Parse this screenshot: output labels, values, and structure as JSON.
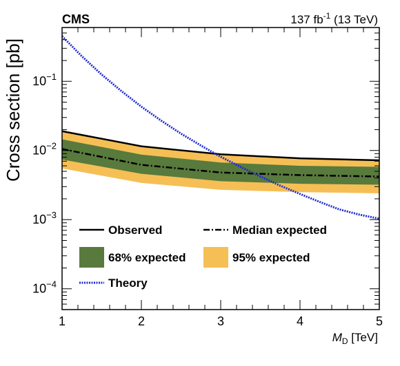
{
  "chart_data": {
    "type": "line",
    "title": "",
    "experiment_label": "CMS",
    "lumi_value": "137 fb",
    "lumi_exponent": "-1",
    "lumi_energy": " (13 TeV)",
    "xlabel_symbol": "M",
    "xlabel_sub": "D",
    "xlabel_unit": " [TeV]",
    "ylabel": "Cross section [pb]",
    "xlim": [
      1,
      5
    ],
    "ylim": [
      5e-05,
      0.6
    ],
    "yscale": "log",
    "x_ticks": [
      1,
      2,
      3,
      4,
      5
    ],
    "x_tick_labels": [
      "1",
      "2",
      "3",
      "4",
      "5"
    ],
    "y_ticks": [
      0.0001,
      0.001,
      0.01,
      0.1
    ],
    "y_tick_labels": [
      {
        "base": "10",
        "exp": "−4"
      },
      {
        "base": "10",
        "exp": "−3"
      },
      {
        "base": "10",
        "exp": "−2"
      },
      {
        "base": "10",
        "exp": "−1"
      }
    ],
    "x": [
      1,
      2,
      3,
      4,
      5
    ],
    "series": [
      {
        "name": "Observed",
        "values": [
          0.019,
          0.0115,
          0.0088,
          0.0077,
          0.0072
        ],
        "color": "#000000",
        "style": "solid"
      },
      {
        "name": "Median expected",
        "values": [
          0.0105,
          0.0062,
          0.0048,
          0.0044,
          0.0042
        ],
        "color": "#000000",
        "style": "dashdot"
      },
      {
        "name": "Theory",
        "x": [
          1,
          1.25,
          1.5,
          1.75,
          2,
          2.25,
          2.5,
          2.75,
          3,
          3.25,
          3.5,
          3.75,
          4,
          4.25,
          4.5,
          4.75,
          5
        ],
        "values": [
          0.45,
          0.23,
          0.125,
          0.072,
          0.043,
          0.027,
          0.0175,
          0.0118,
          0.0081,
          0.0058,
          0.0042,
          0.0031,
          0.00235,
          0.0018,
          0.0014,
          0.00118,
          0.00103
        ],
        "color": "#1e2bd0",
        "style": "dotted"
      }
    ],
    "bands": [
      {
        "name": "95% expected",
        "lower": [
          0.0055,
          0.0034,
          0.0027,
          0.0025,
          0.0024
        ],
        "upper": [
          0.0185,
          0.0112,
          0.0086,
          0.0076,
          0.0073
        ],
        "color": "#f5bf55"
      },
      {
        "name": "68% expected",
        "lower": [
          0.0074,
          0.0046,
          0.0036,
          0.0033,
          0.0032
        ],
        "upper": [
          0.0145,
          0.0087,
          0.0067,
          0.006,
          0.0058
        ],
        "color": "#587a3d"
      }
    ],
    "legend": [
      {
        "label": "Observed",
        "kind": "line",
        "color": "#000000",
        "style": "solid"
      },
      {
        "label": "Median expected",
        "kind": "line",
        "color": "#000000",
        "style": "dashdot"
      },
      {
        "label": "68% expected",
        "kind": "box",
        "color": "#587a3d"
      },
      {
        "label": "95% expected",
        "kind": "box",
        "color": "#f5bf55"
      },
      {
        "label": "Theory",
        "kind": "line",
        "color": "#1e2bd0",
        "style": "dotted"
      }
    ],
    "legend_position": "bottom-left",
    "grid": false
  }
}
